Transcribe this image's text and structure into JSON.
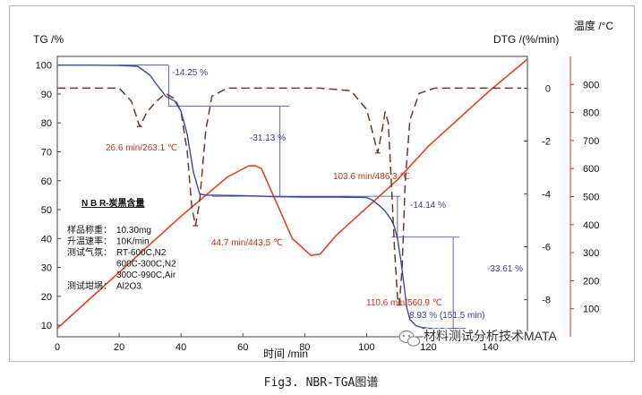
{
  "caption": "Fig3. NBR-TGA图谱",
  "chart_data": {
    "type": "line",
    "title": "",
    "xlabel": "时间 /min",
    "ylabel_left": "TG /%",
    "ylabel_mid": "DTG /(%/min)",
    "ylabel_right": "温度 /°C",
    "xlim": [
      0,
      152
    ],
    "ylim_tg": [
      6,
      103
    ],
    "ylim_dtg": [
      -9.4,
      1.2
    ],
    "ylim_temp": [
      0,
      1000
    ],
    "x_ticks": [
      0,
      20,
      40,
      60,
      80,
      100,
      120,
      140
    ],
    "tg_ticks": [
      10,
      20,
      30,
      40,
      50,
      60,
      70,
      80,
      90,
      100
    ],
    "dtg_ticks": [
      0,
      -2,
      -4,
      -6,
      -8
    ],
    "temp_ticks": [
      100,
      200,
      300,
      400,
      500,
      600,
      700,
      800,
      900
    ],
    "grid": false,
    "colors": {
      "tg": "#3e4a9a",
      "dtg": "#6b3a2a",
      "temperature": "#e0442a",
      "annotation": "#3a3f9a",
      "annotation_red": "#c8311a"
    },
    "series": [
      {
        "name": "TG",
        "axis": "left",
        "x": [
          0,
          10,
          20,
          26,
          30,
          32,
          35,
          38,
          40,
          42,
          44,
          46,
          48,
          52,
          60,
          70,
          80,
          90,
          100,
          102,
          104,
          106,
          108,
          109,
          110,
          111,
          112,
          113,
          114,
          116,
          118,
          120,
          122
        ],
        "y": [
          100,
          100,
          99.9,
          99.6,
          96.5,
          93.5,
          89.3,
          87.5,
          84,
          76,
          63,
          55.5,
          55,
          55,
          54.8,
          54.5,
          54.3,
          54.3,
          54.2,
          53.2,
          51.5,
          49.5,
          46.5,
          44,
          40,
          33,
          25,
          16,
          12,
          9.8,
          9.2,
          8.93,
          8.9
        ]
      },
      {
        "name": "DTG",
        "axis": "mid",
        "x": [
          0,
          20,
          24,
          26.6,
          29,
          32,
          35,
          38,
          40,
          42,
          43.5,
          44.7,
          46,
          48,
          50,
          55,
          60,
          80,
          85,
          95,
          100,
          102,
          103.6,
          105,
          106,
          107,
          108,
          109,
          110,
          110.6,
          111.5,
          112.5,
          114,
          117,
          122,
          150
        ],
        "y": [
          0,
          0,
          -0.5,
          -1.45,
          -0.9,
          -0.5,
          -0.2,
          -0.4,
          -0.9,
          -2.4,
          -4.5,
          -5.2,
          -4.3,
          -1.6,
          -0.3,
          0,
          0,
          0,
          0,
          -0.1,
          -0.8,
          -1.7,
          -2.45,
          -1.6,
          -0.9,
          -1.3,
          -3.5,
          -6,
          -7.9,
          -8.2,
          -6.8,
          -3.5,
          -1.2,
          -0.2,
          0,
          0
        ]
      },
      {
        "name": "温度",
        "axis": "right",
        "x": [
          0,
          40,
          55,
          62,
          64,
          66,
          70,
          76,
          82,
          85,
          90,
          100,
          110,
          120,
          130,
          140,
          152
        ],
        "y": [
          30,
          430,
          570,
          610,
          610,
          600,
          500,
          350,
          290,
          295,
          360,
          460,
          560,
          680,
          780,
          880,
          990
        ]
      }
    ]
  },
  "annotations": {
    "tg_step1": "-14.25 %",
    "tg_step2": "-31.13 %",
    "tg_step3": "-14.14 %",
    "tg_step4": "-33.61 %",
    "residue": "8.93 % (151.5 min)",
    "peak1": "26.6 min/263.1 ℃",
    "peak2": "44.7 min/443.5 ℃",
    "peak3": "103.6 min/486.3 ℃",
    "peak4": "110.6 min/560.9 ℃"
  },
  "sample_panel": {
    "title": "N B R-炭黑含量",
    "rows": [
      {
        "label": "样品称重：",
        "value": "10.30mg"
      },
      {
        "label": "升温速率：",
        "value": "10K/min"
      },
      {
        "label": "测试气氛：",
        "value": "RT-600C,N2"
      },
      {
        "label": "",
        "value": "600C-300C,N2"
      },
      {
        "label": "",
        "value": "300C-990C,Air"
      },
      {
        "label": "测试坩埚：",
        "value": "Al2O3"
      }
    ]
  },
  "watermark": {
    "text": "材料测试分析技术MATA",
    "icon": "wechat-icon"
  }
}
